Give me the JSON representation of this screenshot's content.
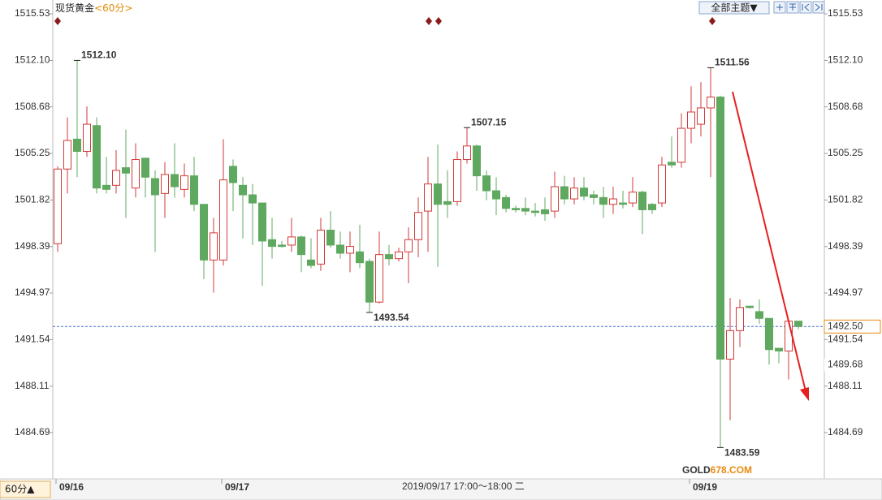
{
  "chart_data": {
    "type": "candlestick",
    "title": "现货黄金",
    "period": "<60分>",
    "theme_button": "全部主题▼",
    "period_button": "60分▲",
    "crosshair_time": "2019/09/17 17:00～18:00 二",
    "watermark": [
      "GOLD",
      "678.COM"
    ],
    "up_color": "#d23a3a",
    "down_color": "#5fa85f",
    "categories": [
      "09/16",
      null,
      null,
      null,
      null,
      null,
      null,
      null,
      null,
      null,
      null,
      null,
      null,
      null,
      null,
      null,
      null,
      "09/17",
      null,
      null,
      null,
      null,
      null,
      null,
      null,
      null,
      null,
      null,
      null,
      null,
      null,
      null,
      null,
      null,
      null,
      null,
      null,
      null,
      null,
      null,
      null,
      null,
      null,
      null,
      null,
      null,
      null,
      null,
      null,
      null,
      null,
      null,
      null,
      null,
      null,
      null,
      null,
      null,
      null,
      null,
      null,
      null,
      null,
      null,
      null,
      "09/19",
      null,
      null,
      null,
      null,
      null,
      null,
      null,
      null,
      null,
      null,
      null
    ],
    "open": [
      1498.6,
      1504.1,
      1506.3,
      1505.4,
      1507.3,
      1502.9,
      1502.9,
      1504.2,
      1502.7,
      1504.9,
      1503.4,
      1502.3,
      1503.7,
      1502.6,
      1503.6,
      1501.5,
      1497.4,
      1497.4,
      1504.3,
      1502.9,
      1502.2,
      1501.6,
      1498.9,
      1498.5,
      1498.5,
      1499.1,
      1497.4,
      1497.1,
      1499.6,
      1498.5,
      1497.9,
      1498.0,
      1497.3,
      1494.3,
      1497.8,
      1497.5,
      1498.0,
      1498.9,
      1501.0,
      1503.0,
      1501.7,
      1501.7,
      1504.8,
      1505.8,
      1503.6,
      1502.5,
      1502.0,
      1501.2,
      1501.2,
      1501.0,
      1501.1,
      1501.0,
      1502.8,
      1501.9,
      1502.7,
      1502.2,
      1502.0,
      1501.5,
      1501.6,
      1501.6,
      1502.4,
      1501.5,
      1501.6,
      1504.6,
      1504.6,
      1507.1,
      1507.4,
      1508.6,
      1509.4,
      1490.1,
      1492.2,
      1494.0,
      1493.6,
      1493.1,
      1490.9,
      1490.7,
      1492.9
    ],
    "high": [
      1504.3,
      1507.9,
      1512.1,
      1508.7,
      1507.9,
      1505.0,
      1505.5,
      1507.0,
      1506.0,
      1504.9,
      1504.0,
      1504.6,
      1506.0,
      1504.5,
      1505.0,
      1501.5,
      1500.5,
      1506.3,
      1504.8,
      1503.5,
      1503.0,
      1501.6,
      1500.5,
      1498.8,
      1500.5,
      1499.2,
      1499.0,
      1500.5,
      1501.0,
      1499.5,
      1499.5,
      1500.0,
      1497.5,
      1499.5,
      1498.5,
      1498.3,
      1499.8,
      1502.0,
      1505.0,
      1505.9,
      1504.0,
      1505.4,
      1507.15,
      1505.9,
      1504.0,
      1503.5,
      1502.2,
      1501.4,
      1502.0,
      1501.6,
      1502.0,
      1503.9,
      1503.6,
      1503.5,
      1503.5,
      1502.5,
      1502.8,
      1502.8,
      1502.5,
      1503.5,
      1502.5,
      1501.6,
      1505.0,
      1506.5,
      1508.2,
      1510.2,
      1510.5,
      1511.56,
      1509.5,
      1494.6,
      1494.5,
      1494.0,
      1494.5,
      1493.1,
      1490.9,
      1493.0,
      1492.9
    ],
    "low": [
      1498.0,
      1502.3,
      1503.5,
      1505.0,
      1502.3,
      1502.3,
      1502.3,
      1500.5,
      1502.0,
      1502.0,
      1498.0,
      1500.5,
      1502.0,
      1502.0,
      1501.0,
      1496.0,
      1495.0,
      1497.0,
      1501.0,
      1499.0,
      1498.5,
      1495.5,
      1497.5,
      1498.3,
      1498.0,
      1496.5,
      1496.8,
      1496.6,
      1498.3,
      1497.5,
      1496.5,
      1496.8,
      1493.54,
      1494.2,
      1497.0,
      1497.3,
      1495.7,
      1497.6,
      1498.0,
      1496.9,
      1500.5,
      1501.4,
      1504.5,
      1502.5,
      1501.8,
      1500.7,
      1500.9,
      1500.9,
      1500.7,
      1500.6,
      1500.3,
      1500.5,
      1501.5,
      1501.5,
      1501.8,
      1501.5,
      1500.5,
      1500.8,
      1501.2,
      1501.3,
      1499.3,
      1500.8,
      1501.3,
      1504.2,
      1504.2,
      1506.0,
      1506.5,
      1503.5,
      1483.59,
      1485.6,
      1491.0,
      1493.8,
      1492.7,
      1489.7,
      1489.8,
      1488.6,
      1492.3
    ],
    "close": [
      1504.1,
      1506.2,
      1505.4,
      1507.4,
      1502.7,
      1502.6,
      1504.0,
      1503.8,
      1504.8,
      1503.5,
      1502.2,
      1503.7,
      1502.8,
      1503.6,
      1501.5,
      1497.4,
      1499.4,
      1503.3,
      1503.1,
      1502.2,
      1501.6,
      1498.8,
      1498.4,
      1498.4,
      1499.1,
      1497.8,
      1497.0,
      1499.6,
      1498.5,
      1497.9,
      1498.4,
      1497.2,
      1494.3,
      1497.8,
      1497.5,
      1498.0,
      1498.9,
      1500.9,
      1503.0,
      1501.5,
      1501.5,
      1504.8,
      1505.8,
      1503.6,
      1502.5,
      1501.9,
      1501.2,
      1501.1,
      1501.0,
      1500.9,
      1500.8,
      1502.8,
      1501.9,
      1502.7,
      1502.1,
      1502.0,
      1501.5,
      1501.9,
      1501.5,
      1502.4,
      1501.1,
      1501.1,
      1504.4,
      1504.4,
      1507.1,
      1508.3,
      1508.6,
      1509.4,
      1490.1,
      1492.2,
      1493.9,
      1493.9,
      1493.1,
      1490.8,
      1490.7,
      1492.9,
      1492.5
    ],
    "high_labels": [
      {
        "value": 1512.1,
        "label": "1512.10"
      },
      {
        "value": 1507.15,
        "label": "1507.15"
      },
      {
        "value": 1511.56,
        "label": "1511.56"
      }
    ],
    "low_labels": [
      {
        "value": 1493.54,
        "label": "1493.54"
      },
      {
        "value": 1483.59,
        "label": "1483.59"
      }
    ],
    "last_price": {
      "value": 1492.5,
      "label": "1492.50"
    },
    "ref_price": 1489.68,
    "ylim": [
      1481.28,
      1516.25
    ],
    "yticks": [
      1515.53,
      {
        "value": 1512.1,
        "label": "1512.10"
      },
      1508.68,
      1505.25,
      1501.82,
      1498.39,
      1494.97,
      1491.54,
      1488.11,
      1484.69
    ]
  }
}
